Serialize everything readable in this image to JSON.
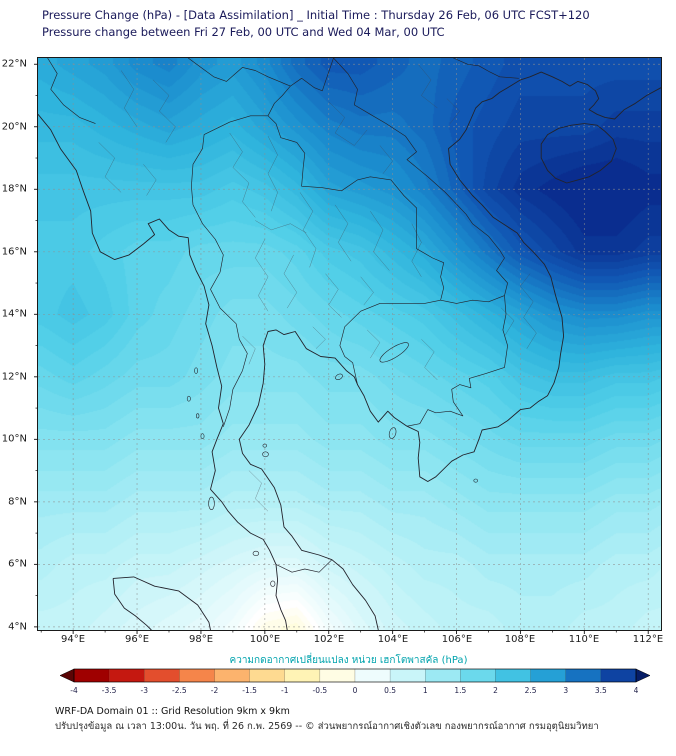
{
  "header": {
    "line1": "Pressure Change (hPa) - [Data Assimilation] _ Initial Time : Thursday 26 Feb, 06 UTC FCST+120",
    "line2": "Pressure change between Fri 27 Feb, 00 UTC and Wed 04 Mar, 00 UTC"
  },
  "footer": {
    "line1": "WRF-DA Domain 01 :: Grid Resolution 9km x 9km",
    "line2": "ปรับปรุงข้อมูล ณ เวลา 13:00น. วัน พฤ. ที่ 26 ก.พ. 2569 -- © ส่วนพยากรณ์อากาศเชิงตัวเลข กองพยากรณ์อากาศ กรมอุตุนิยมวิทยา"
  },
  "colorbar": {
    "label": "ความกดอากาศเปลี่ยนแปลง หน่วย เฮกโตพาสคัล (hPa)",
    "label_color": "#00a3ad",
    "tick_values": [
      -4,
      -3.5,
      -3,
      -2.5,
      -2,
      -1.5,
      -1,
      -0.5,
      0,
      0.5,
      1,
      1.5,
      2,
      2.5,
      3,
      3.5,
      4
    ],
    "tick_labels": [
      "-4",
      "-3.5",
      "-3",
      "-2.5",
      "-2",
      "-1.5",
      "-1",
      "-0.5",
      "0",
      "0.5",
      "1",
      "1.5",
      "2",
      "2.5",
      "3",
      "3.5",
      "4"
    ],
    "under_color": "#5a0505",
    "over_color": "#061d66"
  },
  "axes": {
    "x_tick_lons": [
      94,
      96,
      98,
      100,
      102,
      104,
      106,
      108,
      110,
      112
    ],
    "x_tick_labels": [
      "94°E",
      "96°E",
      "98°E",
      "100°E",
      "102°E",
      "104°E",
      "106°E",
      "108°E",
      "110°E",
      "112°E"
    ],
    "y_tick_lats": [
      22,
      20,
      18,
      16,
      14,
      12,
      10,
      8,
      6,
      4
    ],
    "y_tick_labels": [
      "22°N",
      "20°N",
      "18°N",
      "16°N",
      "14°N",
      "12°N",
      "10°N",
      "8°N",
      "6°N",
      "4°N"
    ]
  },
  "chart_data": {
    "type": "heatmap",
    "title": "Pressure Change (hPa) - [Data Assimilation] _ Initial Time : Thursday 26 Feb, 06 UTC FCST+120",
    "subtitle": "Pressure change between Fri 27 Feb, 00 UTC and Wed 04 Mar, 00 UTC",
    "units": "hPa",
    "legend_position": "bottom",
    "lon_range": [
      92.9,
      112.4
    ],
    "lat_range": [
      3.9,
      22.2
    ],
    "grid_lons": [
      93,
      94,
      95,
      96,
      97,
      98,
      99,
      100,
      101,
      102,
      103,
      104,
      105,
      106,
      107,
      108,
      109,
      110,
      111,
      112,
      113
    ],
    "grid_lats": [
      22,
      20,
      18,
      16,
      14,
      12,
      10,
      8,
      6,
      4
    ],
    "values_hpa": [
      [
        2.6,
        2.7,
        2.8,
        3.0,
        3.1,
        2.9,
        2.8,
        3.0,
        3.3,
        3.5,
        3.5,
        3.4,
        3.3,
        3.4,
        3.5,
        3.6,
        3.6,
        3.6,
        3.6,
        3.6,
        3.6
      ],
      [
        2.4,
        2.4,
        2.5,
        2.6,
        2.7,
        2.6,
        2.5,
        2.7,
        2.9,
        3.1,
        3.2,
        3.2,
        3.3,
        3.5,
        3.6,
        3.7,
        3.7,
        3.7,
        3.8,
        3.8,
        3.8
      ],
      [
        2.2,
        2.2,
        2.2,
        2.2,
        2.2,
        2.2,
        2.1,
        2.2,
        2.4,
        2.7,
        2.8,
        2.9,
        3.1,
        3.4,
        3.7,
        3.9,
        4.0,
        4.1,
        4.1,
        4.0,
        4.0
      ],
      [
        2.1,
        2.1,
        2.0,
        1.9,
        1.9,
        1.8,
        1.8,
        1.8,
        1.9,
        2.1,
        2.2,
        2.4,
        2.6,
        2.9,
        3.2,
        3.5,
        3.7,
        3.9,
        3.9,
        3.8,
        3.8
      ],
      [
        2.1,
        2.2,
        2.1,
        1.9,
        1.8,
        1.7,
        1.6,
        1.6,
        1.7,
        1.8,
        1.9,
        2.0,
        2.1,
        2.3,
        2.5,
        2.7,
        2.9,
        3.0,
        3.0,
        2.9,
        2.9
      ],
      [
        1.8,
        1.9,
        1.8,
        1.7,
        1.7,
        1.6,
        1.5,
        1.5,
        1.5,
        1.6,
        1.6,
        1.7,
        1.8,
        1.9,
        2.0,
        2.2,
        2.3,
        2.3,
        2.2,
        2.2,
        2.1
      ],
      [
        1.5,
        1.5,
        1.5,
        1.4,
        1.4,
        1.4,
        1.3,
        1.3,
        1.3,
        1.4,
        1.4,
        1.5,
        1.5,
        1.6,
        1.7,
        1.8,
        1.8,
        1.8,
        1.7,
        1.7,
        1.6
      ],
      [
        1.2,
        1.2,
        1.2,
        1.1,
        1.1,
        1.1,
        1.0,
        1.0,
        1.0,
        1.1,
        1.1,
        1.2,
        1.2,
        1.3,
        1.4,
        1.4,
        1.4,
        1.4,
        1.3,
        1.3,
        1.2
      ],
      [
        1.0,
        0.9,
        0.9,
        0.8,
        0.8,
        0.7,
        0.6,
        0.5,
        0.5,
        0.7,
        0.8,
        0.9,
        1.0,
        1.0,
        1.1,
        1.1,
        1.1,
        1.1,
        1.0,
        1.0,
        0.9
      ],
      [
        0.8,
        0.8,
        0.7,
        0.6,
        0.5,
        0.4,
        0.2,
        -0.2,
        -0.3,
        0.2,
        0.5,
        0.7,
        0.8,
        0.9,
        0.9,
        1.0,
        1.0,
        0.9,
        0.9,
        0.8,
        0.8
      ]
    ],
    "colormap": [
      {
        "v": -4,
        "c": "#8b0000"
      },
      {
        "v": -3.5,
        "c": "#b30000"
      },
      {
        "v": -3,
        "c": "#d62f20"
      },
      {
        "v": -2.5,
        "c": "#ef6c3a"
      },
      {
        "v": -2,
        "c": "#fb9d59"
      },
      {
        "v": -1.5,
        "c": "#fdc980"
      },
      {
        "v": -1,
        "c": "#feeaa1"
      },
      {
        "v": -0.5,
        "c": "#fffbc8"
      },
      {
        "v": 0,
        "c": "#ffffff"
      },
      {
        "v": 0.5,
        "c": "#ddf9fb"
      },
      {
        "v": 1,
        "c": "#b4f0f6"
      },
      {
        "v": 1.5,
        "c": "#83e2f0"
      },
      {
        "v": 2,
        "c": "#52cfe8"
      },
      {
        "v": 2.5,
        "c": "#2fb4dd"
      },
      {
        "v": 3,
        "c": "#1b8cce"
      },
      {
        "v": 3.5,
        "c": "#1158b4"
      },
      {
        "v": 4,
        "c": "#0a2d8f"
      }
    ]
  }
}
